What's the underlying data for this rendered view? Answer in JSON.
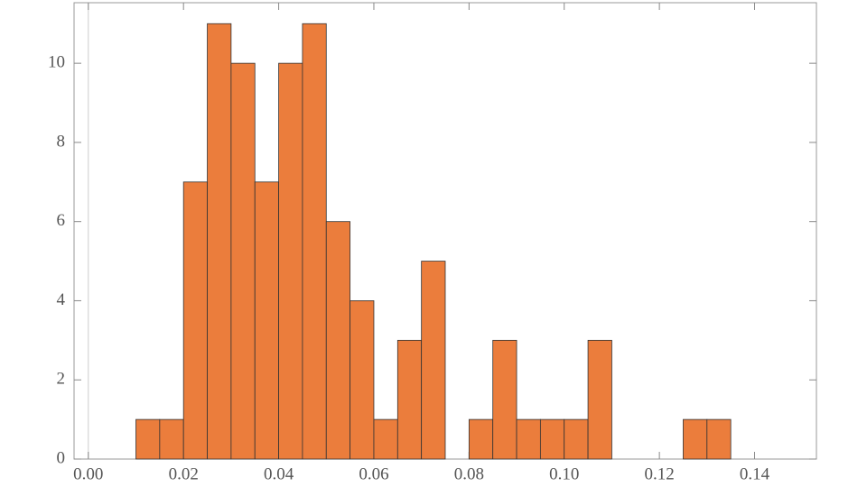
{
  "chart_data": {
    "type": "histogram",
    "bins": [
      0.01,
      0.015,
      0.02,
      0.025,
      0.03,
      0.035,
      0.04,
      0.045,
      0.05,
      0.055,
      0.06,
      0.065,
      0.07,
      0.075,
      0.08,
      0.085,
      0.09,
      0.095,
      0.1,
      0.105,
      0.11,
      0.115,
      0.12,
      0.125,
      0.13,
      0.135
    ],
    "values": [
      1,
      1,
      7,
      11,
      10,
      7,
      10,
      11,
      6,
      4,
      1,
      3,
      5,
      0,
      1,
      3,
      1,
      1,
      1,
      3,
      0,
      0,
      0,
      1,
      1
    ],
    "color": "#eb7d3c",
    "xlim": [
      -0.003,
      0.153
    ],
    "ylim": [
      0,
      11.53
    ],
    "xticks": [
      {
        "value": 0,
        "label": "0.00"
      },
      {
        "value": 0.02,
        "label": "0.02"
      },
      {
        "value": 0.04,
        "label": "0.04"
      },
      {
        "value": 0.06,
        "label": "0.06"
      },
      {
        "value": 0.08,
        "label": "0.08"
      },
      {
        "value": 0.1,
        "label": "0.10"
      },
      {
        "value": 0.12,
        "label": "0.12"
      },
      {
        "value": 0.14,
        "label": "0.14"
      }
    ],
    "yticks": [
      0,
      2,
      4,
      6,
      8,
      10
    ]
  }
}
